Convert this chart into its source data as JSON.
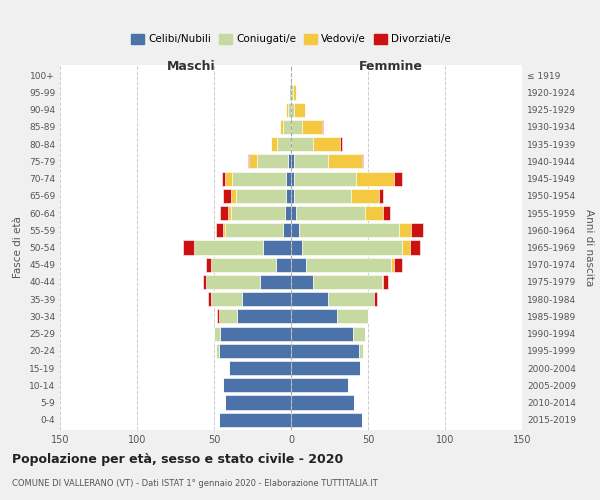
{
  "age_groups": [
    "0-4",
    "5-9",
    "10-14",
    "15-19",
    "20-24",
    "25-29",
    "30-34",
    "35-39",
    "40-44",
    "45-49",
    "50-54",
    "55-59",
    "60-64",
    "65-69",
    "70-74",
    "75-79",
    "80-84",
    "85-89",
    "90-94",
    "95-99",
    "100+"
  ],
  "birth_years": [
    "2015-2019",
    "2010-2014",
    "2005-2009",
    "2000-2004",
    "1995-1999",
    "1990-1994",
    "1985-1989",
    "1980-1984",
    "1975-1979",
    "1970-1974",
    "1965-1969",
    "1960-1964",
    "1955-1959",
    "1950-1954",
    "1945-1949",
    "1940-1944",
    "1935-1939",
    "1930-1934",
    "1925-1929",
    "1920-1924",
    "≤ 1919"
  ],
  "male": {
    "celibi": [
      47,
      43,
      44,
      40,
      47,
      46,
      35,
      32,
      20,
      10,
      18,
      5,
      4,
      3,
      3,
      2,
      0,
      0,
      0,
      0,
      0
    ],
    "coniugati": [
      0,
      0,
      0,
      0,
      2,
      4,
      12,
      20,
      35,
      42,
      45,
      38,
      35,
      33,
      35,
      20,
      9,
      5,
      2,
      1,
      0
    ],
    "vedovi": [
      0,
      0,
      0,
      0,
      0,
      0,
      0,
      0,
      0,
      0,
      0,
      1,
      2,
      3,
      5,
      5,
      4,
      2,
      1,
      0,
      0
    ],
    "divorziati": [
      0,
      0,
      0,
      0,
      0,
      0,
      1,
      2,
      2,
      3,
      7,
      5,
      5,
      5,
      2,
      1,
      0,
      0,
      0,
      0,
      0
    ]
  },
  "female": {
    "nubili": [
      46,
      41,
      37,
      45,
      44,
      40,
      30,
      24,
      14,
      10,
      7,
      5,
      3,
      2,
      2,
      2,
      0,
      0,
      0,
      0,
      0
    ],
    "coniugate": [
      0,
      0,
      0,
      0,
      3,
      8,
      20,
      30,
      45,
      55,
      65,
      65,
      45,
      37,
      40,
      22,
      14,
      7,
      2,
      1,
      0
    ],
    "vedove": [
      0,
      0,
      0,
      0,
      0,
      0,
      0,
      0,
      1,
      2,
      5,
      8,
      12,
      18,
      25,
      22,
      18,
      13,
      7,
      2,
      0
    ],
    "divorziate": [
      0,
      0,
      0,
      0,
      0,
      0,
      0,
      2,
      3,
      5,
      7,
      8,
      4,
      3,
      5,
      1,
      1,
      1,
      0,
      0,
      0
    ]
  },
  "colors": {
    "celibi": "#4c72aa",
    "coniugati": "#c5d9a0",
    "vedovi": "#f5c842",
    "divorziati": "#cc1111"
  },
  "xlim": 150,
  "title": "Popolazione per età, sesso e stato civile - 2020",
  "subtitle": "COMUNE DI VALLERANO (VT) - Dati ISTAT 1° gennaio 2020 - Elaborazione TUTTITALIA.IT",
  "ylabel_left": "Fasce di età",
  "ylabel_right": "Anni di nascita",
  "xlabel_maschi": "Maschi",
  "xlabel_femmine": "Femmine",
  "legend_labels": [
    "Celibi/Nubili",
    "Coniugati/e",
    "Vedovi/e",
    "Divorziati/e"
  ],
  "bg_color": "#f0f0f0",
  "plot_bg_color": "#ffffff"
}
